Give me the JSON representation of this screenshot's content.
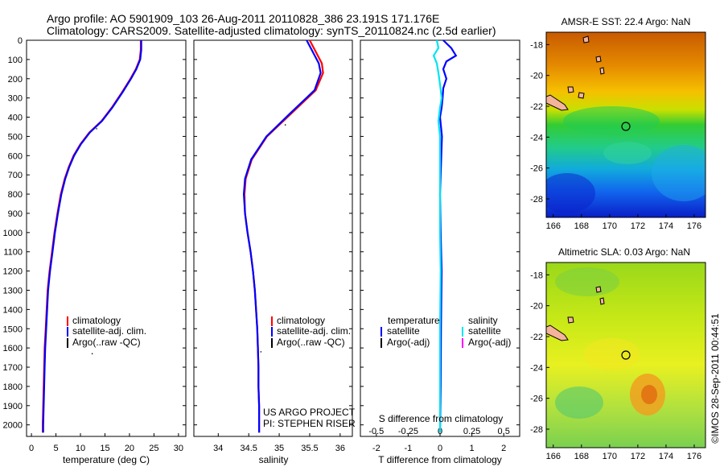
{
  "header": {
    "line1": "Argo profile: AO 5901909_103 26-Aug-2011 20110828_386 23.191S 171.176E",
    "line2": "Climatology: CARS2009. Satellite-adjusted climatology: synTS_20110824.nc (2.5d earlier)"
  },
  "side_stamp": "©IMOS 28-Sep-2011 00:44:51",
  "project": {
    "line1": "US ARGO PROJECT",
    "line2": "PI: STEPHEN RISER"
  },
  "colors": {
    "climatology": "#ff0000",
    "satellite_adj": "#0000ff",
    "argo": "#000000",
    "satellite_sal": "#00e5ee",
    "argo_sal_adj": "#ff00ff"
  },
  "chart_data": [
    {
      "type": "line",
      "name": "temperature_profile",
      "xlabel": "temperature (deg C)",
      "xlim": [
        -1,
        31.5
      ],
      "xticks": [
        0,
        5,
        10,
        15,
        20,
        25,
        30
      ],
      "ylim": [
        0,
        2060
      ],
      "yticks": [
        0,
        100,
        200,
        300,
        400,
        500,
        600,
        700,
        800,
        900,
        1000,
        1100,
        1200,
        1300,
        1400,
        1500,
        1600,
        1700,
        1800,
        1900,
        2000
      ],
      "legend": [
        "climatology",
        "satellite-adj. clim.",
        "Argo(..raw -QC)"
      ],
      "series": [
        {
          "name": "climatology",
          "color": "#ff0000",
          "points": [
            [
              22.3,
              0
            ],
            [
              22.3,
              50
            ],
            [
              22.1,
              100
            ],
            [
              21.3,
              150
            ],
            [
              20.2,
              200
            ],
            [
              18.5,
              270
            ],
            [
              16.4,
              350
            ],
            [
              14.3,
              420
            ],
            [
              11.8,
              480
            ],
            [
              10.0,
              540
            ],
            [
              8.6,
              600
            ],
            [
              7.6,
              660
            ],
            [
              6.8,
              720
            ],
            [
              6.0,
              800
            ],
            [
              5.3,
              900
            ],
            [
              4.7,
              1000
            ],
            [
              4.2,
              1100
            ],
            [
              3.7,
              1200
            ],
            [
              3.3,
              1300
            ],
            [
              3.1,
              1400
            ],
            [
              2.9,
              1500
            ],
            [
              2.7,
              1600
            ],
            [
              2.6,
              1700
            ],
            [
              2.5,
              1800
            ],
            [
              2.4,
              1900
            ],
            [
              2.3,
              2000
            ],
            [
              2.3,
              2040
            ]
          ]
        },
        {
          "name": "satellite-adj. clim.",
          "color": "#0000ff",
          "points": [
            [
              22.4,
              0
            ],
            [
              22.4,
              50
            ],
            [
              22.2,
              100
            ],
            [
              21.4,
              150
            ],
            [
              20.3,
              200
            ],
            [
              18.6,
              270
            ],
            [
              16.5,
              350
            ],
            [
              14.4,
              420
            ],
            [
              11.9,
              480
            ],
            [
              10.1,
              540
            ],
            [
              8.7,
              600
            ],
            [
              7.7,
              660
            ],
            [
              6.9,
              720
            ],
            [
              6.1,
              800
            ],
            [
              5.4,
              900
            ],
            [
              4.8,
              1000
            ],
            [
              4.3,
              1100
            ],
            [
              3.8,
              1200
            ],
            [
              3.4,
              1300
            ],
            [
              3.2,
              1400
            ],
            [
              3.0,
              1500
            ],
            [
              2.8,
              1600
            ],
            [
              2.7,
              1700
            ],
            [
              2.6,
              1800
            ],
            [
              2.5,
              1900
            ],
            [
              2.4,
              2000
            ],
            [
              2.4,
              2040
            ]
          ]
        },
        {
          "name": "Argo(..raw -QC)",
          "color": "#000000",
          "style": "dots",
          "points": [
            [
              12.4,
              1630
            ],
            [
              13.3,
              460
            ]
          ]
        }
      ]
    },
    {
      "type": "line",
      "name": "salinity_profile",
      "xlabel": "salinity",
      "xlim": [
        33.6,
        36.2
      ],
      "xticks": [
        34,
        34.5,
        35,
        35.5,
        36
      ],
      "ylim": [
        0,
        2060
      ],
      "legend": [
        "climatology",
        "satellite-adj. clim.",
        "Argo(..raw -QC)"
      ],
      "series": [
        {
          "name": "climatology",
          "color": "#ff0000",
          "points": [
            [
              35.5,
              0
            ],
            [
              35.6,
              60
            ],
            [
              35.7,
              120
            ],
            [
              35.72,
              170
            ],
            [
              35.6,
              260
            ],
            [
              35.2,
              380
            ],
            [
              34.8,
              500
            ],
            [
              34.55,
              620
            ],
            [
              34.45,
              720
            ],
            [
              34.43,
              800
            ],
            [
              34.44,
              900
            ],
            [
              34.48,
              1000
            ],
            [
              34.53,
              1100
            ],
            [
              34.57,
              1200
            ],
            [
              34.6,
              1300
            ],
            [
              34.62,
              1400
            ],
            [
              34.64,
              1500
            ],
            [
              34.65,
              1600
            ],
            [
              34.66,
              1700
            ],
            [
              34.66,
              1800
            ],
            [
              34.67,
              1900
            ],
            [
              34.67,
              2000
            ],
            [
              34.67,
              2040
            ]
          ]
        },
        {
          "name": "satellite-adj. clim.",
          "color": "#0000ff",
          "points": [
            [
              35.45,
              0
            ],
            [
              35.55,
              60
            ],
            [
              35.65,
              120
            ],
            [
              35.68,
              170
            ],
            [
              35.58,
              260
            ],
            [
              35.18,
              380
            ],
            [
              34.79,
              500
            ],
            [
              34.54,
              620
            ],
            [
              34.44,
              720
            ],
            [
              34.42,
              800
            ],
            [
              34.44,
              900
            ],
            [
              34.48,
              1000
            ],
            [
              34.53,
              1100
            ],
            [
              34.57,
              1200
            ],
            [
              34.6,
              1300
            ],
            [
              34.62,
              1400
            ],
            [
              34.64,
              1500
            ],
            [
              34.65,
              1600
            ],
            [
              34.66,
              1700
            ],
            [
              34.66,
              1800
            ],
            [
              34.67,
              1900
            ],
            [
              34.67,
              2000
            ],
            [
              34.67,
              2040
            ]
          ]
        },
        {
          "name": "Argo(..raw -QC)",
          "color": "#000000",
          "style": "dots",
          "points": [
            [
              34.7,
              1620
            ],
            [
              35.1,
              440
            ]
          ]
        }
      ]
    },
    {
      "type": "line",
      "name": "difference_profile",
      "xlabel_bottom": "T difference from climatology",
      "xlabel_top": "S difference from climatology",
      "xlim": [
        -2.5,
        2.5
      ],
      "xticks_T": [
        -2,
        -1,
        0,
        1,
        2
      ],
      "xticks_S": [
        -0.5,
        -0.25,
        0,
        0.25,
        0.5
      ],
      "ylim": [
        0,
        2060
      ],
      "legend_title_T": "temperature",
      "legend_title_S": "salinity",
      "legend": [
        "satellite",
        "Argo(-adj)",
        "satellite",
        "Argo(-adj)"
      ],
      "series": [
        {
          "name": "temperature satellite",
          "color": "#0000ff",
          "points": [
            [
              0.1,
              0
            ],
            [
              0.35,
              40
            ],
            [
              0.5,
              80
            ],
            [
              0.2,
              110
            ],
            [
              0.1,
              150
            ],
            [
              0.2,
              200
            ],
            [
              0.1,
              250
            ],
            [
              0.08,
              300
            ],
            [
              0.05,
              350
            ],
            [
              0.0,
              400
            ],
            [
              0.06,
              500
            ],
            [
              0.04,
              600
            ],
            [
              0.02,
              700
            ],
            [
              0.0,
              800
            ],
            [
              0.02,
              1000
            ],
            [
              0.05,
              1200
            ],
            [
              0.03,
              1500
            ],
            [
              0.02,
              1800
            ],
            [
              0.0,
              2040
            ]
          ]
        },
        {
          "name": "salinity satellite",
          "color": "#00e5ee",
          "points": [
            [
              -0.1,
              0
            ],
            [
              -0.05,
              40
            ],
            [
              -0.2,
              80
            ],
            [
              -0.1,
              120
            ],
            [
              -0.05,
              170
            ],
            [
              0.0,
              230
            ],
            [
              0.05,
              300
            ],
            [
              0.0,
              350
            ],
            [
              -0.05,
              420
            ],
            [
              0.0,
              500
            ],
            [
              0.0,
              600
            ],
            [
              0.0,
              800
            ],
            [
              0.0,
              1000
            ],
            [
              0.02,
              1200
            ],
            [
              0.0,
              1500
            ],
            [
              0.0,
              1800
            ],
            [
              0.0,
              2040
            ]
          ]
        }
      ]
    },
    {
      "type": "heatmap",
      "name": "sst_map",
      "title": "AMSR-E SST: 22.4  Argo: NaN",
      "xlim": [
        165.5,
        176.8
      ],
      "ylim": [
        -29.2,
        -17.2
      ],
      "xticks": [
        166,
        168,
        170,
        172,
        174,
        176
      ],
      "yticks": [
        -18,
        -20,
        -22,
        -24,
        -26,
        -28
      ],
      "marker": {
        "lon": 171.176,
        "lat": -23.191
      }
    },
    {
      "type": "heatmap",
      "name": "sla_map",
      "title": "Altimetric SLA: 0.03  Argo: NaN",
      "xlim": [
        165.5,
        176.8
      ],
      "ylim": [
        -29.2,
        -17.2
      ],
      "xticks": [
        166,
        168,
        170,
        172,
        174,
        176
      ],
      "yticks": [
        -18,
        -20,
        -22,
        -24,
        -26,
        -28
      ],
      "marker": {
        "lon": 171.176,
        "lat": -23.191
      }
    }
  ]
}
